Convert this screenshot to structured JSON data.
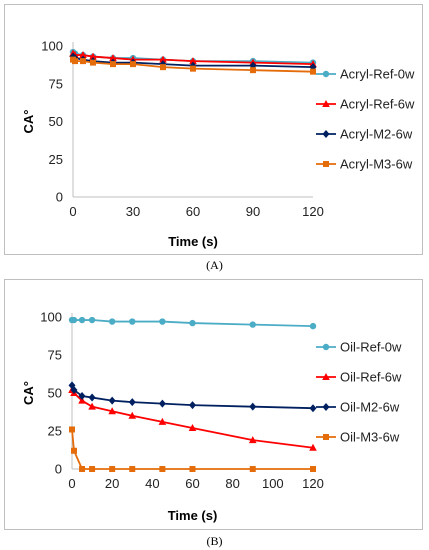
{
  "chart_data": [
    {
      "type": "line",
      "panel_label": "(A)",
      "xlabel": "Time (s)",
      "ylabel": "CA°",
      "xlim": [
        0,
        120
      ],
      "ylim": [
        0,
        100
      ],
      "x_ticks": [
        0,
        30,
        60,
        90,
        120
      ],
      "y_ticks": [
        0,
        25,
        50,
        75,
        100
      ],
      "grid": false,
      "legend_position": "right",
      "series": [
        {
          "name": "Acryl-Ref-0w",
          "color": "#4bacc6",
          "marker": "circle",
          "x": [
            0,
            1,
            5,
            10,
            20,
            30,
            45,
            60,
            90,
            120
          ],
          "y": [
            96,
            95,
            94,
            93,
            92,
            92,
            91,
            90,
            90,
            89
          ]
        },
        {
          "name": "Acryl-Ref-6w",
          "color": "#ff0000",
          "marker": "triangle",
          "x": [
            0,
            1,
            5,
            10,
            20,
            30,
            45,
            60,
            90,
            120
          ],
          "y": [
            95,
            94,
            94,
            93,
            92,
            91,
            91,
            90,
            89,
            88
          ]
        },
        {
          "name": "Acryl-M2-6w",
          "color": "#002060",
          "marker": "diamond",
          "x": [
            0,
            1,
            5,
            10,
            20,
            30,
            45,
            60,
            90,
            120
          ],
          "y": [
            93,
            92,
            91,
            90,
            89,
            89,
            88,
            87,
            87,
            86
          ]
        },
        {
          "name": "Acryl-M3-6w",
          "color": "#e46c0a",
          "marker": "square",
          "x": [
            0,
            1,
            5,
            10,
            20,
            30,
            45,
            60,
            90,
            120
          ],
          "y": [
            91,
            90,
            90,
            89,
            88,
            88,
            86,
            85,
            84,
            83
          ]
        }
      ]
    },
    {
      "type": "line",
      "panel_label": "(B)",
      "xlabel": "Time (s)",
      "ylabel": "CA°",
      "xlim": [
        0,
        120
      ],
      "ylim": [
        0,
        100
      ],
      "x_ticks": [
        0,
        20,
        40,
        60,
        80,
        100,
        120
      ],
      "y_ticks": [
        0,
        25,
        50,
        75,
        100
      ],
      "grid": false,
      "legend_position": "right",
      "series": [
        {
          "name": "Oil-Ref-0w",
          "color": "#4bacc6",
          "marker": "circle",
          "x": [
            0,
            1,
            5,
            10,
            20,
            30,
            45,
            60,
            90,
            120
          ],
          "y": [
            98,
            98,
            98,
            98,
            97,
            97,
            97,
            96,
            95,
            94
          ]
        },
        {
          "name": "Oil-Ref-6w",
          "color": "#ff0000",
          "marker": "triangle",
          "x": [
            0,
            1,
            5,
            10,
            20,
            30,
            45,
            60,
            90,
            120
          ],
          "y": [
            52,
            50,
            45,
            41,
            38,
            35,
            31,
            27,
            19,
            14
          ]
        },
        {
          "name": "Oil-M2-6w",
          "color": "#002060",
          "marker": "diamond",
          "x": [
            0,
            1,
            5,
            10,
            20,
            30,
            45,
            60,
            90,
            120
          ],
          "y": [
            55,
            52,
            48,
            47,
            45,
            44,
            43,
            42,
            41,
            40
          ]
        },
        {
          "name": "Oil-M3-6w",
          "color": "#e46c0a",
          "marker": "square",
          "x": [
            0,
            1,
            5,
            10,
            20,
            30,
            45,
            60,
            90,
            120
          ],
          "y": [
            26,
            12,
            0,
            0,
            0,
            0,
            0,
            0,
            0,
            0
          ]
        }
      ]
    }
  ]
}
